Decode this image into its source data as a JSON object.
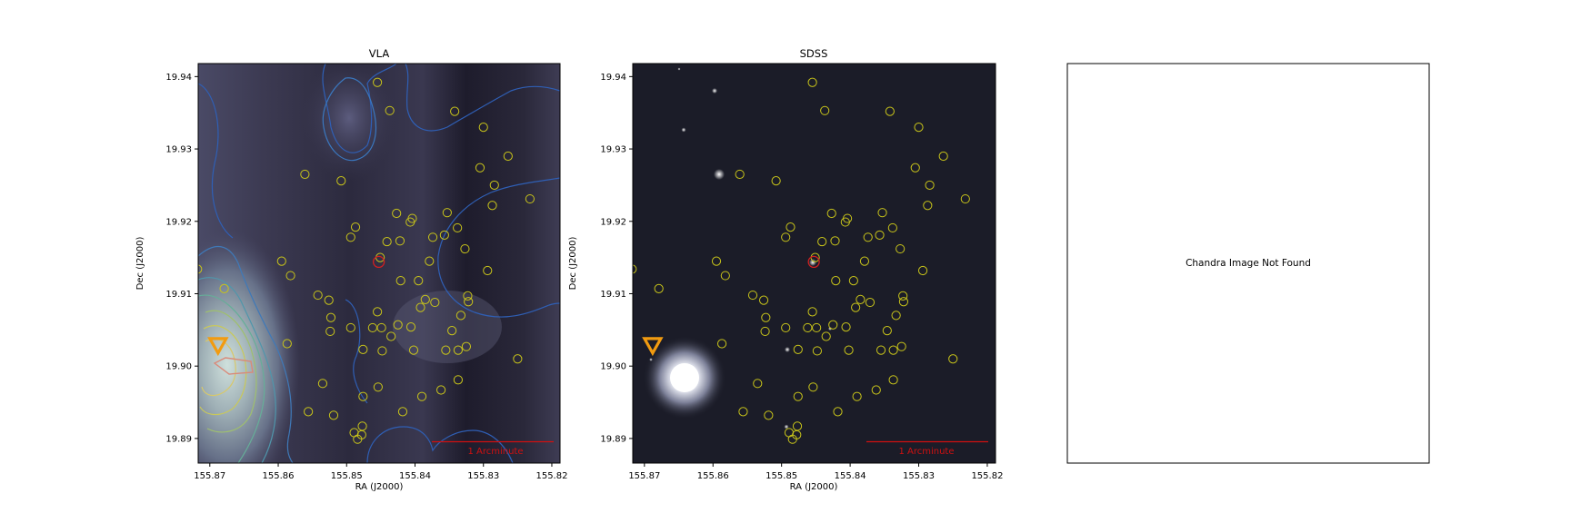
{
  "colors": {
    "circle": "#c8c41a",
    "highlight": "#d22020",
    "marker": "#f29b10",
    "scalebar": "#d01010",
    "contour_low": "#2f5fb5",
    "contour_mid": "#5fa7a0",
    "contour_high": "#c9c85a",
    "contour_peak": "#d98a7a"
  },
  "chart_data": [
    {
      "type": "scatter",
      "title": "VLA",
      "background": "radio continuum image with contours",
      "xlabel": "RA (J2000)",
      "ylabel": "Dec (J2000)",
      "xlim": [
        155.8717,
        155.8188
      ],
      "ylim": [
        19.8866,
        19.9418
      ],
      "x_ticks": [
        "155.87",
        "155.86",
        "155.85",
        "155.84",
        "155.83",
        "155.82"
      ],
      "y_ticks": [
        "19.89",
        "19.90",
        "19.91",
        "19.92",
        "19.93",
        "19.94"
      ],
      "scalebar_label": "1 Arcminute",
      "x_tick_values": [
        155.87,
        155.86,
        155.85,
        155.84,
        155.83,
        155.82
      ],
      "y_tick_values": [
        19.89,
        19.9,
        19.91,
        19.92,
        19.93,
        19.94
      ]
    },
    {
      "type": "scatter",
      "title": "SDSS",
      "background": "optical image",
      "xlabel": "RA (J2000)",
      "ylabel": "Dec (J2000)",
      "xlim": [
        155.8717,
        155.8188
      ],
      "ylim": [
        19.8866,
        19.9418
      ],
      "x_ticks": [
        "155.87",
        "155.86",
        "155.85",
        "155.84",
        "155.83",
        "155.82"
      ],
      "y_ticks": [
        "19.89",
        "19.90",
        "19.91",
        "19.92",
        "19.93",
        "19.94"
      ],
      "scalebar_label": "1 Arcminute",
      "x_tick_values": [
        155.87,
        155.86,
        155.85,
        155.84,
        155.83,
        155.82
      ],
      "y_tick_values": [
        19.89,
        19.9,
        19.91,
        19.92,
        19.93,
        19.94
      ]
    }
  ],
  "sources": [
    {
      "ra": 155.8718,
      "dec": 19.9134
    },
    {
      "ra": 155.8679,
      "dec": 19.9107
    },
    {
      "ra": 155.8595,
      "dec": 19.9145
    },
    {
      "ra": 155.8582,
      "dec": 19.9125
    },
    {
      "ra": 155.8587,
      "dec": 19.9031
    },
    {
      "ra": 155.8561,
      "dec": 19.9265
    },
    {
      "ra": 155.8556,
      "dec": 19.8937
    },
    {
      "ra": 155.8542,
      "dec": 19.9098
    },
    {
      "ra": 155.8535,
      "dec": 19.8976
    },
    {
      "ra": 155.8526,
      "dec": 19.9091
    },
    {
      "ra": 155.8523,
      "dec": 19.9067
    },
    {
      "ra": 155.8524,
      "dec": 19.9048
    },
    {
      "ra": 155.8519,
      "dec": 19.8932
    },
    {
      "ra": 155.8508,
      "dec": 19.9256
    },
    {
      "ra": 155.8494,
      "dec": 19.9178
    },
    {
      "ra": 155.8487,
      "dec": 19.9192
    },
    {
      "ra": 155.8476,
      "dec": 19.8958
    },
    {
      "ra": 155.8489,
      "dec": 19.8908
    },
    {
      "ra": 155.8484,
      "dec": 19.8899
    },
    {
      "ra": 155.8478,
      "dec": 19.8905
    },
    {
      "ra": 155.8477,
      "dec": 19.8917
    },
    {
      "ra": 155.8476,
      "dec": 19.9023
    },
    {
      "ra": 155.8462,
      "dec": 19.9053
    },
    {
      "ra": 155.8455,
      "dec": 19.9392
    },
    {
      "ra": 155.8455,
      "dec": 19.9075
    },
    {
      "ra": 155.8449,
      "dec": 19.9053
    },
    {
      "ra": 155.8448,
      "dec": 19.9021
    },
    {
      "ra": 155.8454,
      "dec": 19.8971
    },
    {
      "ra": 155.8451,
      "dec": 19.915
    },
    {
      "ra": 155.8441,
      "dec": 19.9172
    },
    {
      "ra": 155.8437,
      "dec": 19.9353
    },
    {
      "ra": 155.8435,
      "dec": 19.9041
    },
    {
      "ra": 155.8427,
      "dec": 19.9211
    },
    {
      "ra": 155.8422,
      "dec": 19.9173
    },
    {
      "ra": 155.8425,
      "dec": 19.9057
    },
    {
      "ra": 155.8421,
      "dec": 19.9118
    },
    {
      "ra": 155.8418,
      "dec": 19.8937
    },
    {
      "ra": 155.8407,
      "dec": 19.9199
    },
    {
      "ra": 155.8404,
      "dec": 19.9204
    },
    {
      "ra": 155.8406,
      "dec": 19.9054
    },
    {
      "ra": 155.8402,
      "dec": 19.9022
    },
    {
      "ra": 155.8395,
      "dec": 19.9118
    },
    {
      "ra": 155.8392,
      "dec": 19.9081
    },
    {
      "ra": 155.839,
      "dec": 19.8958
    },
    {
      "ra": 155.8385,
      "dec": 19.9092
    },
    {
      "ra": 155.8379,
      "dec": 19.9145
    },
    {
      "ra": 155.8374,
      "dec": 19.9178
    },
    {
      "ra": 155.8371,
      "dec": 19.9088
    },
    {
      "ra": 155.8362,
      "dec": 19.8967
    },
    {
      "ra": 155.8357,
      "dec": 19.9181
    },
    {
      "ra": 155.8355,
      "dec": 19.9022
    },
    {
      "ra": 155.8353,
      "dec": 19.9212
    },
    {
      "ra": 155.8346,
      "dec": 19.9049
    },
    {
      "ra": 155.8342,
      "dec": 19.9352
    },
    {
      "ra": 155.8338,
      "dec": 19.9191
    },
    {
      "ra": 155.8337,
      "dec": 19.9022
    },
    {
      "ra": 155.8337,
      "dec": 19.8981
    },
    {
      "ra": 155.8333,
      "dec": 19.907
    },
    {
      "ra": 155.8327,
      "dec": 19.9162
    },
    {
      "ra": 155.8325,
      "dec": 19.9027
    },
    {
      "ra": 155.8323,
      "dec": 19.9097
    },
    {
      "ra": 155.8322,
      "dec": 19.9089
    },
    {
      "ra": 155.8305,
      "dec": 19.9274
    },
    {
      "ra": 155.83,
      "dec": 19.933
    },
    {
      "ra": 155.8294,
      "dec": 19.9132
    },
    {
      "ra": 155.8284,
      "dec": 19.925
    },
    {
      "ra": 155.8287,
      "dec": 19.9222
    },
    {
      "ra": 155.8264,
      "dec": 19.929
    },
    {
      "ra": 155.825,
      "dec": 19.901
    },
    {
      "ra": 155.8232,
      "dec": 19.9231
    },
    {
      "ra": 155.8494,
      "dec": 19.9053
    }
  ],
  "highlight": {
    "ra": 155.8453,
    "dec": 19.9144
  },
  "marker": {
    "ra": 155.8688,
    "dec": 19.9028
  },
  "panel3": {
    "message": "Chandra Image Not Found"
  }
}
